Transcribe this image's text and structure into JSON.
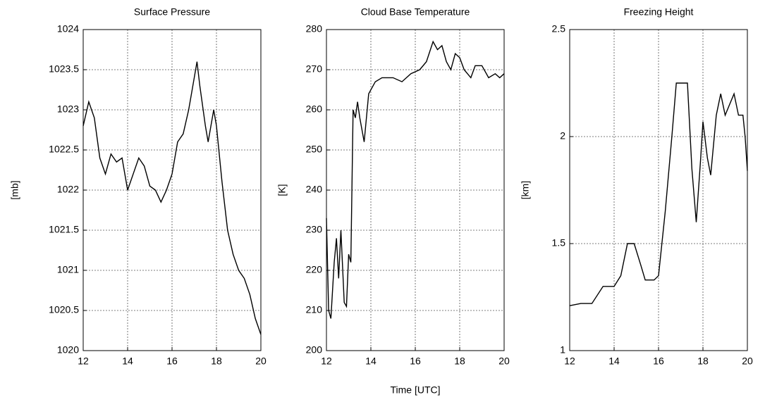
{
  "chart_data": [
    {
      "type": "line",
      "title": "Surface Pressure",
      "ylabel": "[mb]",
      "color": "#000000",
      "grid": true,
      "x": [
        12,
        12.25,
        12.5,
        12.75,
        13,
        13.25,
        13.5,
        13.75,
        14,
        14.25,
        14.5,
        14.75,
        15,
        15.25,
        15.5,
        15.75,
        16,
        16.25,
        16.5,
        16.75,
        17,
        17.125,
        17.25,
        17.5,
        17.625,
        17.875,
        18,
        18.25,
        18.5,
        18.75,
        19,
        19.25,
        19.5,
        19.75,
        20
      ],
      "values": [
        1022.8,
        1023.1,
        1022.9,
        1022.4,
        1022.2,
        1022.45,
        1022.35,
        1022.4,
        1022.0,
        1022.2,
        1022.4,
        1022.3,
        1022.05,
        1022.0,
        1021.85,
        1022.0,
        1022.2,
        1022.6,
        1022.7,
        1023.0,
        1023.4,
        1023.6,
        1023.3,
        1022.8,
        1022.6,
        1023.0,
        1022.8,
        1022.1,
        1021.5,
        1021.2,
        1021.0,
        1020.9,
        1020.7,
        1020.4,
        1020.2
      ],
      "xlim": [
        12,
        20
      ],
      "xticks": [
        12,
        14,
        16,
        18,
        20
      ],
      "ylim": [
        1020,
        1024
      ],
      "yticks": [
        1020,
        1020.5,
        1021,
        1021.5,
        1022,
        1022.5,
        1023,
        1023.5,
        1024
      ]
    },
    {
      "type": "line",
      "title": "Cloud Base Temperature",
      "ylabel": "[K]",
      "xlabel": "Time [UTC]",
      "color": "#000000",
      "grid": true,
      "x": [
        12,
        12.1,
        12.2,
        12.35,
        12.45,
        12.55,
        12.65,
        12.8,
        12.9,
        13.0,
        13.1,
        13.2,
        13.3,
        13.4,
        13.5,
        13.7,
        13.9,
        14.2,
        14.5,
        15,
        15.4,
        15.8,
        16.2,
        16.5,
        16.8,
        17,
        17.2,
        17.4,
        17.6,
        17.8,
        18,
        18.2,
        18.5,
        18.7,
        19,
        19.3,
        19.6,
        19.8,
        20
      ],
      "values": [
        233,
        210,
        208,
        222,
        228,
        218,
        230,
        212,
        211,
        224,
        222,
        260,
        258,
        262,
        258,
        252,
        264,
        267,
        268,
        268,
        267,
        269,
        270,
        272,
        277,
        275,
        276,
        272,
        270,
        274,
        273,
        270,
        268,
        271,
        271,
        268,
        269,
        268,
        269
      ],
      "xlim": [
        12,
        20
      ],
      "xticks": [
        12,
        14,
        16,
        18,
        20
      ],
      "ylim": [
        200,
        280
      ],
      "yticks": [
        200,
        210,
        220,
        230,
        240,
        250,
        260,
        270,
        280
      ]
    },
    {
      "type": "line",
      "title": "Freezing Height",
      "ylabel": "[km]",
      "color": "#000000",
      "grid": true,
      "x": [
        12,
        12.5,
        13,
        13.5,
        14,
        14.3,
        14.6,
        14.9,
        15.2,
        15.4,
        15.8,
        16,
        16.3,
        16.6,
        16.8,
        17.3,
        17.5,
        17.7,
        17.9,
        18,
        18.2,
        18.35,
        18.6,
        18.8,
        19,
        19.2,
        19.4,
        19.6,
        19.8,
        19.9,
        20
      ],
      "values": [
        1.21,
        1.22,
        1.22,
        1.3,
        1.3,
        1.35,
        1.5,
        1.5,
        1.4,
        1.33,
        1.33,
        1.35,
        1.65,
        2.0,
        2.25,
        2.25,
        1.85,
        1.6,
        1.9,
        2.07,
        1.9,
        1.82,
        2.1,
        2.2,
        2.1,
        2.15,
        2.2,
        2.1,
        2.1,
        2.0,
        1.84
      ],
      "xlim": [
        12,
        20
      ],
      "xticks": [
        12,
        14,
        16,
        18,
        20
      ],
      "ylim": [
        1,
        2.5
      ],
      "yticks": [
        1,
        1.5,
        2,
        2.5
      ]
    }
  ]
}
